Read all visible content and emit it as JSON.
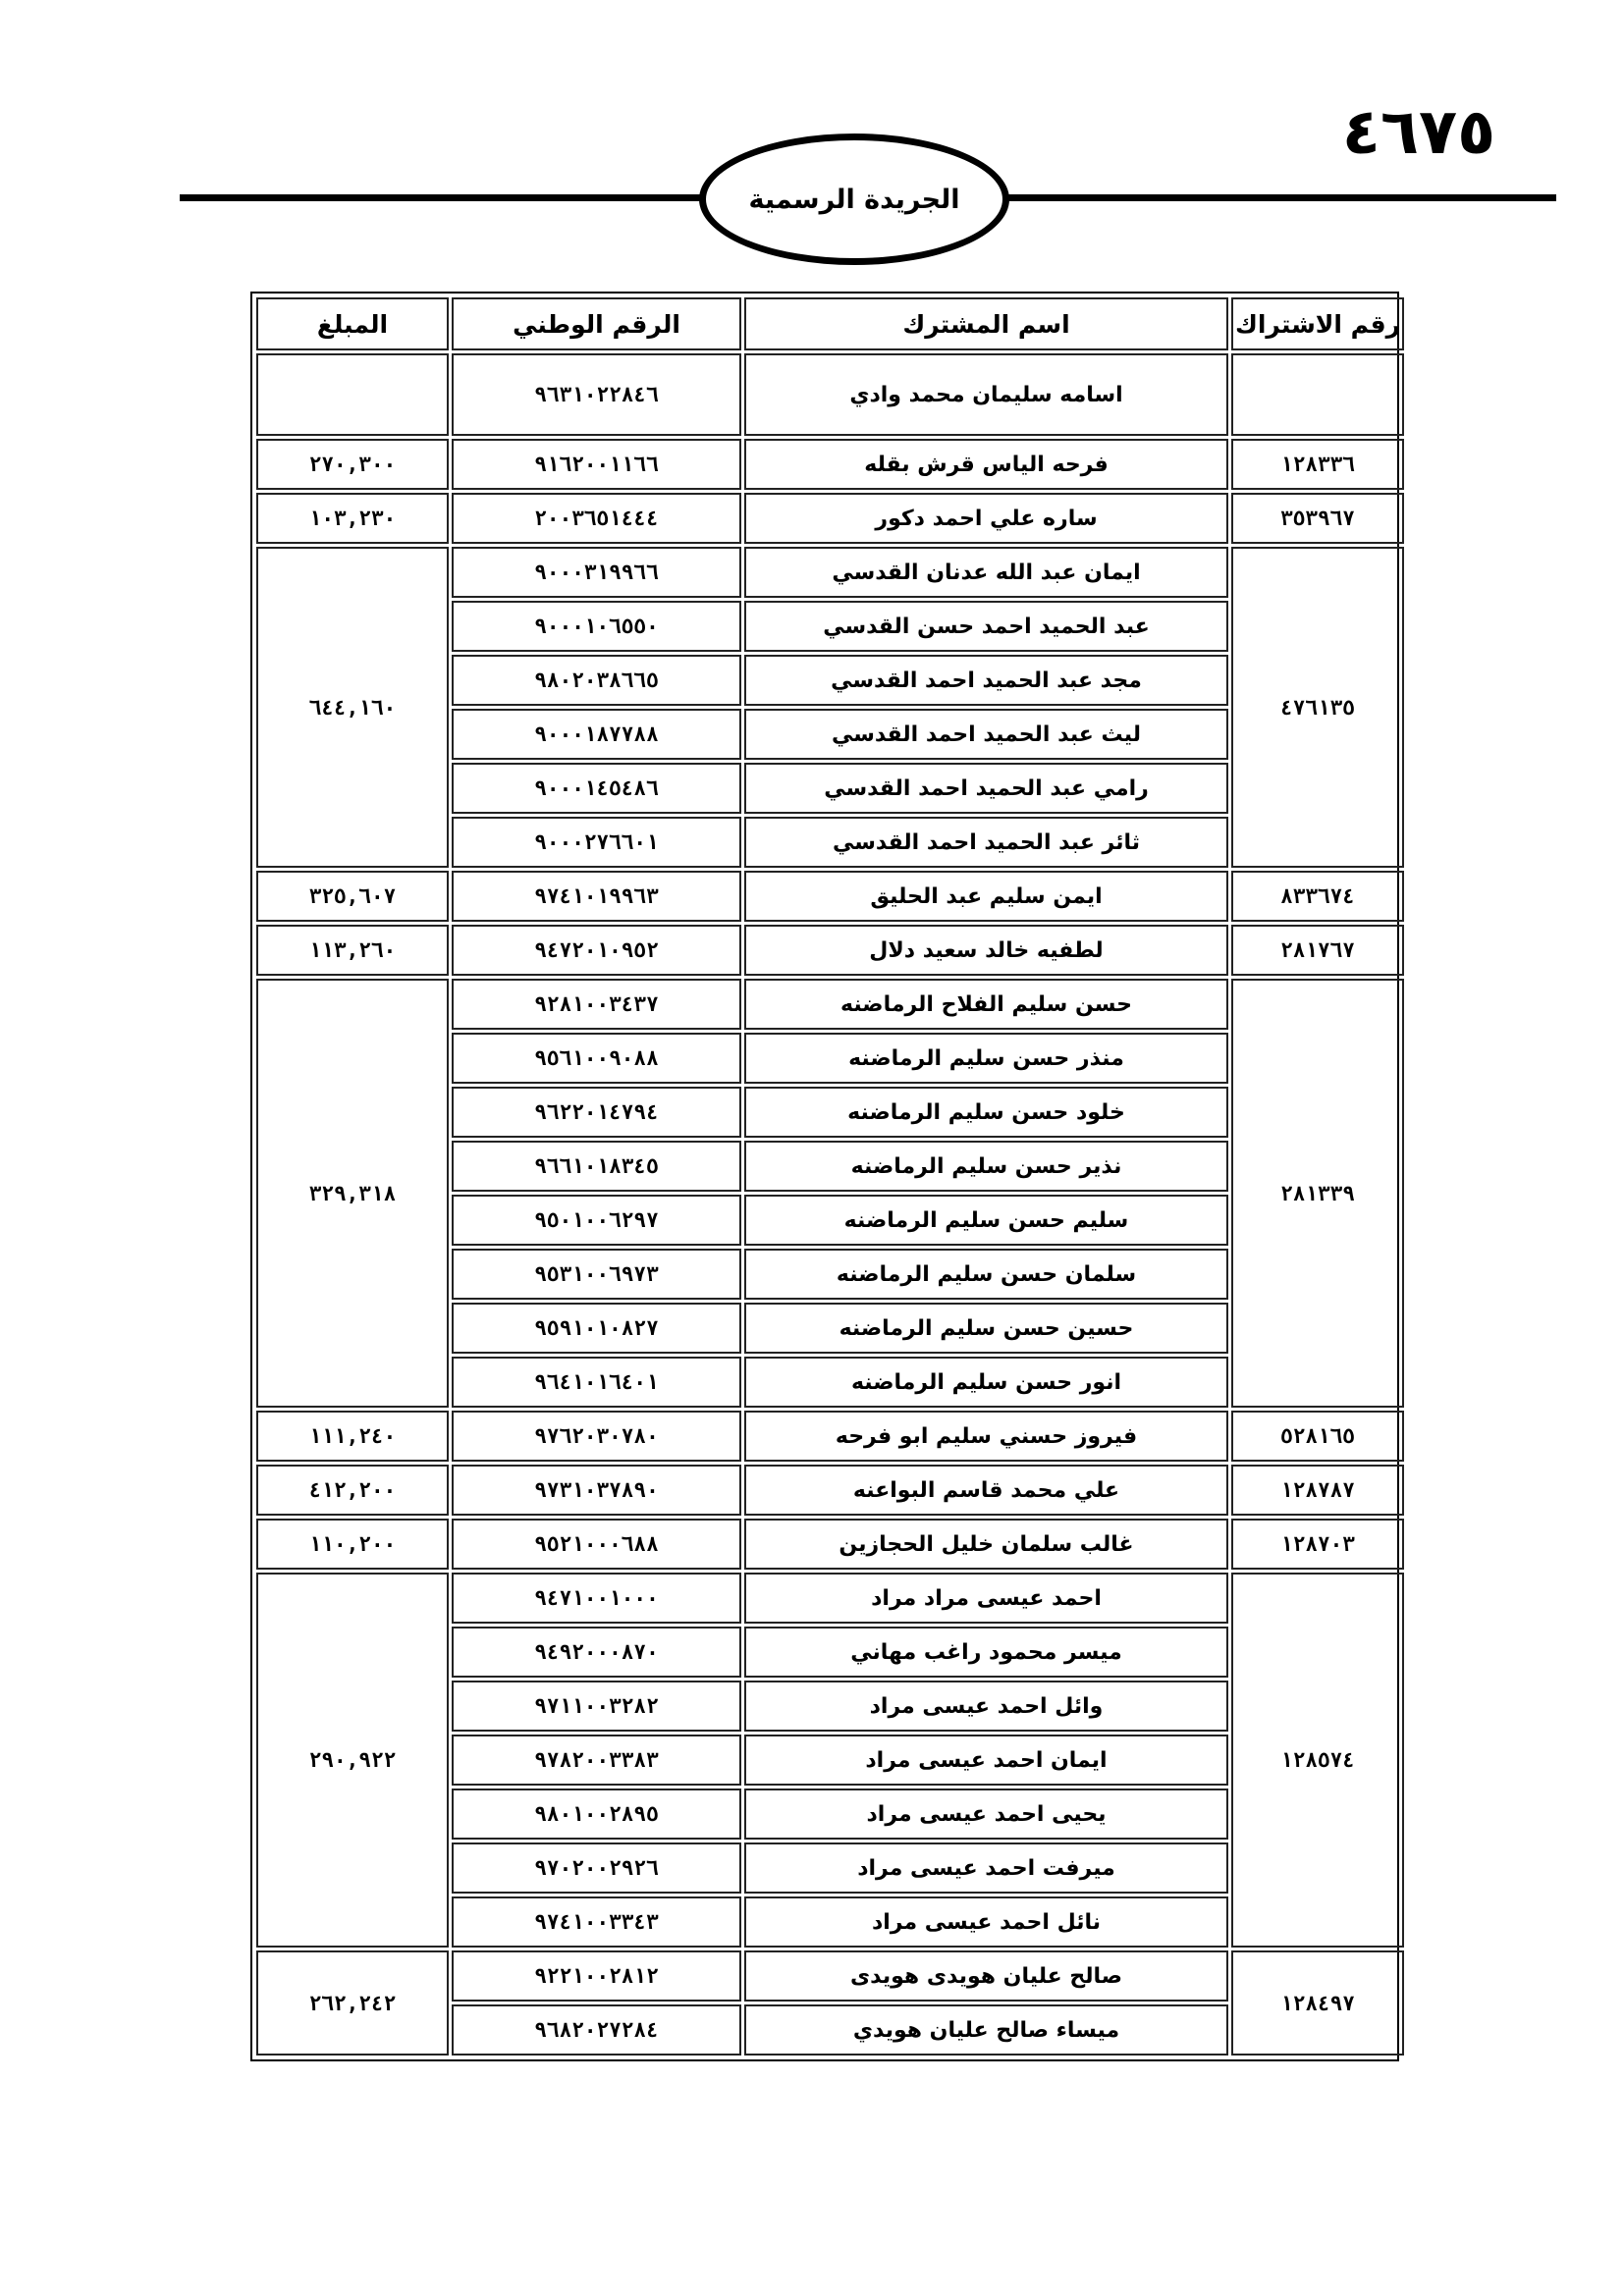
{
  "header": {
    "page_number": "٤٦٧٥",
    "publication_title": "الجريدة الرسمية"
  },
  "table": {
    "columns": {
      "subscription_no": "رقم الاشتراك",
      "subscriber_name": "اسم المشترك",
      "national_no": "الرقم الوطني",
      "amount": "المبلغ"
    },
    "groups": [
      {
        "subscription_no": "",
        "amount": "",
        "members": [
          {
            "name": "اسامه سليمان محمد وادي",
            "national_no": "٩٦٣١٠٢٢٨٤٦"
          }
        ]
      },
      {
        "subscription_no": "١٢٨٣٣٦",
        "amount": "٢٧٠,٣٠٠",
        "members": [
          {
            "name": "فرحه الياس قرش بقله",
            "national_no": "٩١٦٢٠٠١١٦٦"
          }
        ]
      },
      {
        "subscription_no": "٣٥٣٩٦٧",
        "amount": "١٠٣,٢٣٠",
        "members": [
          {
            "name": "ساره علي احمد دكور",
            "national_no": "٢٠٠٣٦٥١٤٤٤"
          }
        ]
      },
      {
        "subscription_no": "٤٧٦١٣٥",
        "amount": "٦٤٤,١٦٠",
        "members": [
          {
            "name": "ايمان عبد الله عدنان القدسي",
            "national_no": "٩٠٠٠٣١٩٩٦٦"
          },
          {
            "name": "عبد الحميد احمد حسن القدسي",
            "national_no": "٩٠٠٠١٠٦٥٥٠"
          },
          {
            "name": "مجد عبد الحميد احمد القدسي",
            "national_no": "٩٨٠٢٠٣٨٦٦٥"
          },
          {
            "name": "ليث عبد الحميد احمد القدسي",
            "national_no": "٩٠٠٠١٨٧٧٨٨"
          },
          {
            "name": "رامي عبد الحميد احمد القدسي",
            "national_no": "٩٠٠٠١٤٥٤٨٦"
          },
          {
            "name": "ثائر عبد الحميد احمد القدسي",
            "national_no": "٩٠٠٠٢٧٦٦٠١"
          }
        ]
      },
      {
        "subscription_no": "٨٣٣٦٧٤",
        "amount": "٣٢٥,٦٠٧",
        "members": [
          {
            "name": "ايمن سليم عبد الحليق",
            "national_no": "٩٧٤١٠١٩٩٦٣"
          }
        ]
      },
      {
        "subscription_no": "٢٨١٧٦٧",
        "amount": "١١٣,٢٦٠",
        "members": [
          {
            "name": "لطفيه خالد سعيد دلال",
            "national_no": "٩٤٧٢٠١٠٩٥٢"
          }
        ]
      },
      {
        "subscription_no": "٢٨١٣٣٩",
        "amount": "٣٢٩,٣١٨",
        "members": [
          {
            "name": "حسن سليم الفلاح الرماضنه",
            "national_no": "٩٢٨١٠٠٣٤٣٧"
          },
          {
            "name": "منذر حسن سليم الرماضنه",
            "national_no": "٩٥٦١٠٠٩٠٨٨"
          },
          {
            "name": "خلود حسن سليم الرماضنه",
            "national_no": "٩٦٢٢٠١٤٧٩٤"
          },
          {
            "name": "نذير حسن سليم الرماضنه",
            "national_no": "٩٦٦١٠١٨٣٤٥"
          },
          {
            "name": "سليم حسن سليم الرماضنه",
            "national_no": "٩٥٠١٠٠٦٢٩٧"
          },
          {
            "name": "سلمان حسن سليم الرماضنه",
            "national_no": "٩٥٣١٠٠٦٩٧٣"
          },
          {
            "name": "حسين حسن سليم الرماضنه",
            "national_no": "٩٥٩١٠١٠٨٢٧"
          },
          {
            "name": "انور حسن سليم الرماضنه",
            "national_no": "٩٦٤١٠١٦٤٠١"
          }
        ]
      },
      {
        "subscription_no": "٥٢٨١٦٥",
        "amount": "١١١,٢٤٠",
        "members": [
          {
            "name": "فيروز حسني سليم ابو فرحه",
            "national_no": "٩٧٦٢٠٣٠٧٨٠"
          }
        ]
      },
      {
        "subscription_no": "١٢٨٧٨٧",
        "amount": "٤١٢,٢٠٠",
        "members": [
          {
            "name": "علي محمد قاسم البواعنه",
            "national_no": "٩٧٣١٠٣٧٨٩٠"
          }
        ]
      },
      {
        "subscription_no": "١٢٨٧٠٣",
        "amount": "١١٠,٢٠٠",
        "members": [
          {
            "name": "غالب سلمان خليل الحجازين",
            "national_no": "٩٥٢١٠٠٠٦٨٨"
          }
        ]
      },
      {
        "subscription_no": "١٢٨٥٧٤",
        "amount": "٢٩٠,٩٢٢",
        "members": [
          {
            "name": "احمد عيسى مراد مراد",
            "national_no": "٩٤٧١٠٠١٠٠٠"
          },
          {
            "name": "ميسر محمود راغب مهاني",
            "national_no": "٩٤٩٢٠٠٠٨٧٠"
          },
          {
            "name": "وائل احمد عيسى مراد",
            "national_no": "٩٧١١٠٠٣٢٨٢"
          },
          {
            "name": "ايمان احمد عيسى مراد",
            "national_no": "٩٧٨٢٠٠٣٣٨٣"
          },
          {
            "name": "يحيى احمد عيسى مراد",
            "national_no": "٩٨٠١٠٠٢٨٩٥"
          },
          {
            "name": "ميرفت احمد عيسى مراد",
            "national_no": "٩٧٠٢٠٠٢٩٢٦"
          },
          {
            "name": "نائل احمد عيسى مراد",
            "national_no": "٩٧٤١٠٠٣٣٤٣"
          }
        ]
      },
      {
        "subscription_no": "١٢٨٤٩٧",
        "amount": "٢٦٢,٢٤٢",
        "members": [
          {
            "name": "صالح عليان هويدى هويدى",
            "national_no": "٩٢٢١٠٠٢٨١٢"
          },
          {
            "name": "ميساء صالح عليان هويدي",
            "national_no": "٩٦٨٢٠٢٧٢٨٤"
          }
        ]
      }
    ]
  }
}
